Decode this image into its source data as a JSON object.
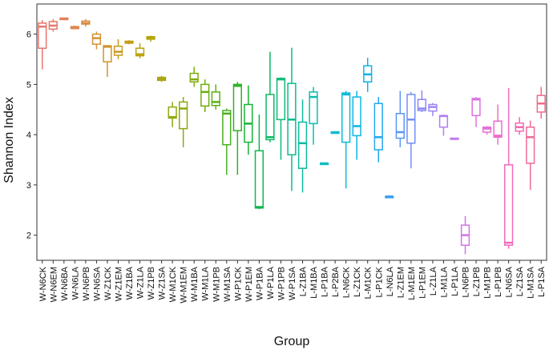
{
  "chart_data": {
    "type": "box",
    "title": "",
    "xlabel": "Group",
    "ylabel": "Shannon Index",
    "ylim": [
      1.5,
      6.6
    ],
    "yticks": [
      2,
      3,
      4,
      5,
      6
    ],
    "grid": false,
    "legend": "none",
    "series": [
      {
        "group": "W-N6CK",
        "color": "#e8766d",
        "min": 5.3,
        "q1": 5.72,
        "median": 6.15,
        "q3": 6.22,
        "max": 6.28
      },
      {
        "group": "W-N6EM",
        "color": "#e4796a",
        "min": 6.05,
        "q1": 6.1,
        "median": 6.17,
        "q3": 6.25,
        "max": 6.3
      },
      {
        "group": "W-N6BA",
        "color": "#e0805c",
        "min": 6.28,
        "q1": 6.29,
        "median": 6.31,
        "q3": 6.32,
        "max": 6.33
      },
      {
        "group": "W-N6LA",
        "color": "#dc8850",
        "min": 6.1,
        "q1": 6.11,
        "median": 6.13,
        "q3": 6.15,
        "max": 6.17
      },
      {
        "group": "W-N6PB",
        "color": "#d78c40",
        "min": 6.15,
        "q1": 6.2,
        "median": 6.22,
        "q3": 6.26,
        "max": 6.3
      },
      {
        "group": "W-N6SA",
        "color": "#d39232",
        "min": 5.7,
        "q1": 5.8,
        "median": 5.92,
        "q3": 6.0,
        "max": 6.05
      },
      {
        "group": "W-Z1CK",
        "color": "#cf9426",
        "min": 5.15,
        "q1": 5.45,
        "median": 5.75,
        "q3": 5.77,
        "max": 5.78
      },
      {
        "group": "W-Z1EM",
        "color": "#c99a1e",
        "min": 5.5,
        "q1": 5.58,
        "median": 5.65,
        "q3": 5.76,
        "max": 5.9
      },
      {
        "group": "W-Z1BA",
        "color": "#c39e14",
        "min": 5.8,
        "q1": 5.82,
        "median": 5.84,
        "q3": 5.86,
        "max": 5.88
      },
      {
        "group": "W-Z1LA",
        "color": "#bda20c",
        "min": 5.52,
        "q1": 5.57,
        "median": 5.6,
        "q3": 5.72,
        "max": 5.82
      },
      {
        "group": "W-Z1PB",
        "color": "#b5a50a",
        "min": 5.85,
        "q1": 5.9,
        "median": 5.92,
        "q3": 5.95,
        "max": 5.97
      },
      {
        "group": "W-Z1SA",
        "color": "#aba30c",
        "min": 5.05,
        "q1": 5.08,
        "median": 5.11,
        "q3": 5.14,
        "max": 5.17
      },
      {
        "group": "W-M1CK",
        "color": "#92a80e",
        "min": 4.15,
        "q1": 4.33,
        "median": 4.35,
        "q3": 4.55,
        "max": 4.65
      },
      {
        "group": "W-M1EM",
        "color": "#89aa0e",
        "min": 3.75,
        "q1": 4.12,
        "median": 4.52,
        "q3": 4.65,
        "max": 4.75
      },
      {
        "group": "W-M1BA",
        "color": "#7eac10",
        "min": 4.95,
        "q1": 5.05,
        "median": 5.1,
        "q3": 5.22,
        "max": 5.35
      },
      {
        "group": "W-M1LA",
        "color": "#6fae14",
        "min": 4.45,
        "q1": 4.57,
        "median": 4.85,
        "q3": 5.0,
        "max": 5.1
      },
      {
        "group": "W-M1PB",
        "color": "#5eb018",
        "min": 4.5,
        "q1": 4.58,
        "median": 4.65,
        "q3": 4.85,
        "max": 5.0
      },
      {
        "group": "W-M1SA",
        "color": "#49b01e",
        "min": 3.2,
        "q1": 3.8,
        "median": 4.42,
        "q3": 4.48,
        "max": 4.52
      },
      {
        "group": "W-P1CK",
        "color": "#2fb228",
        "min": 3.2,
        "q1": 4.08,
        "median": 4.97,
        "q3": 5.0,
        "max": 5.05
      },
      {
        "group": "W-P1EM",
        "color": "#18b436",
        "min": 3.6,
        "q1": 3.85,
        "median": 4.22,
        "q3": 4.6,
        "max": 4.98
      },
      {
        "group": "W-P1BA",
        "color": "#0db84c",
        "min": 2.52,
        "q1": 2.54,
        "median": 2.56,
        "q3": 3.68,
        "max": 4.4
      },
      {
        "group": "W-P1LA",
        "color": "#0cb862",
        "min": 3.85,
        "q1": 3.9,
        "median": 3.95,
        "q3": 4.8,
        "max": 5.65
      },
      {
        "group": "W-P1PB",
        "color": "#0cba78",
        "min": 3.5,
        "q1": 4.3,
        "median": 5.1,
        "q3": 5.12,
        "max": 5.14
      },
      {
        "group": "W-P1SA",
        "color": "#0cbb8c",
        "min": 2.88,
        "q1": 3.6,
        "median": 4.3,
        "q3": 5.02,
        "max": 5.73
      },
      {
        "group": "L-Z1BA",
        "color": "#0cbc9e",
        "min": 2.85,
        "q1": 3.33,
        "median": 3.83,
        "q3": 4.25,
        "max": 4.7
      },
      {
        "group": "L-M1BA",
        "color": "#0cbdb0",
        "min": 3.8,
        "q1": 4.22,
        "median": 4.75,
        "q3": 4.85,
        "max": 4.95
      },
      {
        "group": "L-P1BA",
        "color": "#0cbdc2",
        "min": 3.43,
        "q1": 3.43,
        "median": 3.43,
        "q3": 3.43,
        "max": 3.43
      },
      {
        "group": "L-P2BA",
        "color": "#0cbcd0",
        "min": 4.05,
        "q1": 4.05,
        "median": 4.05,
        "q3": 4.05,
        "max": 4.05
      },
      {
        "group": "L-N6CK",
        "color": "#0cbadc",
        "min": 2.93,
        "q1": 3.85,
        "median": 4.8,
        "q3": 4.83,
        "max": 4.87
      },
      {
        "group": "L-Z1CK",
        "color": "#0cb6e6",
        "min": 3.5,
        "q1": 3.98,
        "median": 4.17,
        "q3": 4.75,
        "max": 4.87
      },
      {
        "group": "L-M1CK",
        "color": "#12b0ee",
        "min": 4.85,
        "q1": 5.05,
        "median": 5.2,
        "q3": 5.37,
        "max": 5.53
      },
      {
        "group": "L-P1CK",
        "color": "#22a8f2",
        "min": 3.45,
        "q1": 3.7,
        "median": 3.95,
        "q3": 4.62,
        "max": 4.75
      },
      {
        "group": "L-N6LA",
        "color": "#3a9ef4",
        "min": 2.77,
        "q1": 2.77,
        "median": 2.77,
        "q3": 2.77,
        "max": 2.77
      },
      {
        "group": "L-Z1EM",
        "color": "#5896f6",
        "min": 3.75,
        "q1": 3.93,
        "median": 4.05,
        "q3": 4.42,
        "max": 4.87
      },
      {
        "group": "L-M1EM",
        "color": "#748ef6",
        "min": 3.33,
        "q1": 3.83,
        "median": 4.3,
        "q3": 4.8,
        "max": 4.85
      },
      {
        "group": "L-P1EM",
        "color": "#8a88f6",
        "min": 4.45,
        "q1": 4.48,
        "median": 4.52,
        "q3": 4.7,
        "max": 4.88
      },
      {
        "group": "L-Z1LA",
        "color": "#9e84f4",
        "min": 4.37,
        "q1": 4.47,
        "median": 4.55,
        "q3": 4.6,
        "max": 4.63
      },
      {
        "group": "L-M1LA",
        "color": "#b07ef2",
        "min": 3.98,
        "q1": 4.15,
        "median": 4.37,
        "q3": 4.38,
        "max": 4.4
      },
      {
        "group": "L-P1LA",
        "color": "#c07aee",
        "min": 3.9,
        "q1": 3.91,
        "median": 3.92,
        "q3": 3.93,
        "max": 3.94
      },
      {
        "group": "L-N6PB",
        "color": "#d076e8",
        "min": 1.62,
        "q1": 1.8,
        "median": 2.0,
        "q3": 2.2,
        "max": 2.38
      },
      {
        "group": "L-Z1PB",
        "color": "#dc72e0",
        "min": 4.15,
        "q1": 4.38,
        "median": 4.7,
        "q3": 4.72,
        "max": 4.75
      },
      {
        "group": "L-M1PB",
        "color": "#e470d8",
        "min": 4.0,
        "q1": 4.05,
        "median": 4.12,
        "q3": 4.15,
        "max": 4.17
      },
      {
        "group": "L-P1PB",
        "color": "#ea6ecc",
        "min": 3.8,
        "q1": 3.95,
        "median": 3.98,
        "q3": 4.27,
        "max": 4.6
      },
      {
        "group": "L-N6SA",
        "color": "#ee6cbe",
        "min": 1.73,
        "q1": 1.8,
        "median": 1.85,
        "q3": 3.4,
        "max": 4.93
      },
      {
        "group": "L-Z1SA",
        "color": "#f06aae",
        "min": 4.0,
        "q1": 4.07,
        "median": 4.15,
        "q3": 4.23,
        "max": 4.35
      },
      {
        "group": "L-M1SA",
        "color": "#f06a9c",
        "min": 2.9,
        "q1": 3.43,
        "median": 3.95,
        "q3": 4.15,
        "max": 4.28
      },
      {
        "group": "L-P1SA",
        "color": "#ee6c8a",
        "min": 4.32,
        "q1": 4.45,
        "median": 4.62,
        "q3": 4.78,
        "max": 4.95
      }
    ]
  }
}
